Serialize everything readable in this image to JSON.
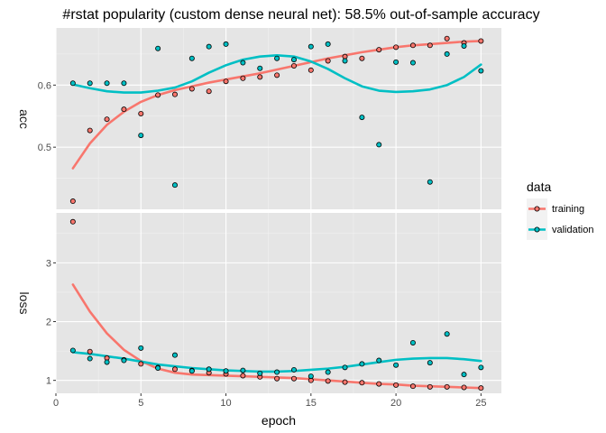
{
  "chart_data": {
    "type": "scatter",
    "title": "#rstat popularity (custom dense neural net): 58.5% out-of-sample accuracy",
    "xlabel": "epoch",
    "xlim": [
      0,
      26.2
    ],
    "x_ticks": [
      "0",
      "5",
      "10",
      "15",
      "20",
      "25"
    ],
    "legend": {
      "title": "data",
      "placement": "right",
      "entries": [
        "training",
        "validation"
      ]
    },
    "colors": {
      "training": "#F8766D",
      "validation": "#00BFC4"
    },
    "x": [
      1,
      2,
      3,
      4,
      5,
      6,
      7,
      8,
      9,
      10,
      11,
      12,
      13,
      14,
      15,
      16,
      17,
      18,
      19,
      20,
      21,
      22,
      23,
      24,
      25
    ],
    "facets": [
      {
        "strip_label": "acc",
        "ylim": [
          0.4,
          0.692
        ],
        "y_ticks": [
          "0.5",
          "0.6"
        ],
        "series": [
          {
            "name": "training",
            "values": [
              0.413,
              0.527,
              0.545,
              0.561,
              0.554,
              0.584,
              0.585,
              0.594,
              0.59,
              0.606,
              0.611,
              0.613,
              0.616,
              0.631,
              0.624,
              0.639,
              0.646,
              0.643,
              0.657,
              0.661,
              0.664,
              0.664,
              0.675,
              0.668,
              0.671
            ],
            "smooth": [
              0.466,
              0.506,
              0.536,
              0.557,
              0.573,
              0.584,
              0.592,
              0.598,
              0.604,
              0.609,
              0.614,
              0.619,
              0.625,
              0.631,
              0.637,
              0.643,
              0.648,
              0.653,
              0.657,
              0.661,
              0.664,
              0.666,
              0.668,
              0.67,
              0.671
            ]
          },
          {
            "name": "validation",
            "values": [
              0.603,
              0.603,
              0.603,
              0.603,
              0.519,
              0.659,
              0.439,
              0.643,
              0.662,
              0.666,
              0.636,
              0.627,
              0.643,
              0.641,
              0.662,
              0.666,
              0.639,
              0.548,
              0.504,
              0.637,
              0.636,
              0.444,
              0.65,
              0.663,
              0.623
            ],
            "smooth": [
              0.601,
              0.595,
              0.59,
              0.588,
              0.588,
              0.591,
              0.596,
              0.606,
              0.62,
              0.632,
              0.641,
              0.646,
              0.648,
              0.646,
              0.638,
              0.626,
              0.611,
              0.598,
              0.591,
              0.589,
              0.59,
              0.593,
              0.6,
              0.613,
              0.633
            ]
          }
        ]
      },
      {
        "strip_label": "loss",
        "ylim": [
          0.78,
          3.85
        ],
        "y_ticks": [
          "1",
          "2",
          "3"
        ],
        "series": [
          {
            "name": "training",
            "values": [
              3.7,
              1.49,
              1.38,
              1.35,
              1.28,
              1.22,
              1.19,
              1.17,
              1.13,
              1.11,
              1.08,
              1.06,
              1.03,
              1.03,
              1.0,
              0.99,
              0.97,
              0.96,
              0.94,
              0.92,
              0.9,
              0.89,
              0.89,
              0.88,
              0.87
            ],
            "smooth": [
              2.63,
              2.17,
              1.8,
              1.52,
              1.33,
              1.2,
              1.13,
              1.1,
              1.09,
              1.08,
              1.07,
              1.06,
              1.05,
              1.04,
              1.02,
              1.0,
              0.98,
              0.96,
              0.94,
              0.93,
              0.91,
              0.9,
              0.89,
              0.88,
              0.87
            ]
          },
          {
            "name": "validation",
            "values": [
              1.51,
              1.37,
              1.31,
              1.34,
              1.55,
              1.21,
              1.43,
              1.16,
              1.19,
              1.16,
              1.17,
              1.12,
              1.14,
              1.18,
              1.07,
              1.14,
              1.22,
              1.28,
              1.34,
              1.26,
              1.64,
              1.3,
              1.79,
              1.1,
              1.22
            ],
            "smooth": [
              1.48,
              1.45,
              1.41,
              1.37,
              1.32,
              1.27,
              1.24,
              1.21,
              1.19,
              1.17,
              1.16,
              1.15,
              1.15,
              1.16,
              1.18,
              1.2,
              1.23,
              1.27,
              1.31,
              1.35,
              1.37,
              1.38,
              1.38,
              1.36,
              1.33
            ]
          }
        ]
      }
    ]
  }
}
